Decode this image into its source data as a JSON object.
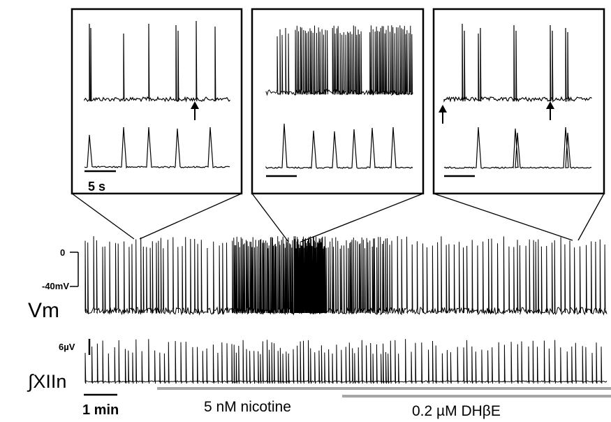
{
  "labels": {
    "inset_scale": "5 s",
    "time_scale": "1 min",
    "vm_zero": "0",
    "vm_low": "-40mV",
    "vm_channel": "Vm",
    "xiin_scale": "6µV",
    "xiin_channel": "∫XIIn",
    "nicotine": "5 nM nicotine",
    "dhbe": "0.2 µM DHβE"
  },
  "colors": {
    "trace": "#000000",
    "drug_bar": "#a6a6a6"
  },
  "icons": [
    "arrow-up-icon"
  ]
}
